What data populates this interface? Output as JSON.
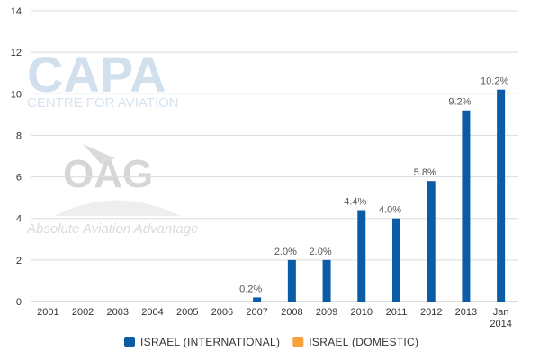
{
  "chart_data": {
    "type": "bar",
    "categories": [
      "2001",
      "2002",
      "2003",
      "2004",
      "2005",
      "2006",
      "2007",
      "2008",
      "2009",
      "2010",
      "2011",
      "2012",
      "2013",
      "Jan 2014"
    ],
    "series": [
      {
        "name": "ISRAEL (INTERNATIONAL)",
        "color": "#0b5ba5",
        "values": [
          0,
          0,
          0,
          0,
          0,
          0,
          0.2,
          2.0,
          2.0,
          4.4,
          4.0,
          5.8,
          9.2,
          10.2
        ],
        "labels": [
          "",
          "",
          "",
          "",
          "",
          "",
          "0.2%",
          "2.0%",
          "2.0%",
          "4.4%",
          "4.0%",
          "5.8%",
          "9.2%",
          "10.2%"
        ]
      },
      {
        "name": "ISRAEL (DOMESTIC)",
        "color": "#f7a03c",
        "values": [
          0,
          0,
          0,
          0,
          0,
          0,
          0,
          0,
          0,
          0,
          0,
          0,
          0,
          0
        ],
        "labels": []
      }
    ],
    "ylim": [
      0,
      14
    ],
    "yticks": [
      0,
      2,
      4,
      6,
      8,
      10,
      12,
      14
    ],
    "grid": true,
    "legend_position": "bottom-center"
  },
  "watermarks": {
    "capa_logo": "CAPA",
    "capa_tagline": "CENTRE FOR AVIATION",
    "oag_logo": "OAG",
    "oag_tagline": "Absolute Aviation Advantage"
  }
}
